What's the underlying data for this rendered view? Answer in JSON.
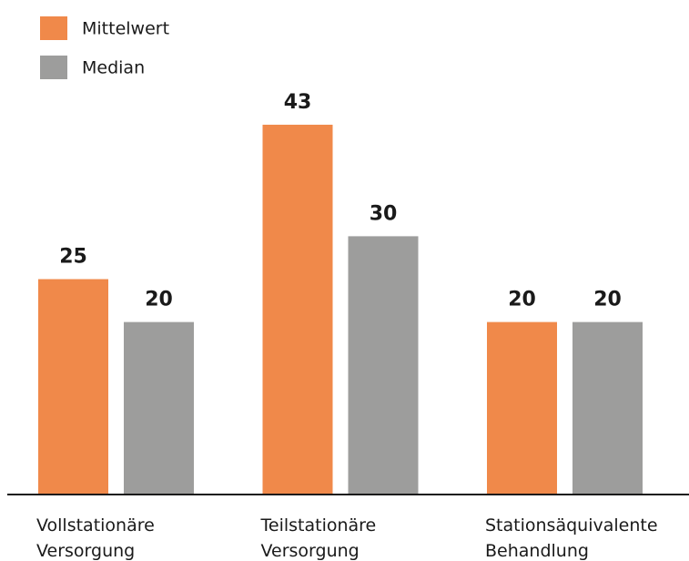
{
  "chart_data": {
    "type": "bar",
    "categories": [
      "Vollstationäre Versorgung",
      "Teilstationäre Versorgung",
      "Stationsäquivalente Behandlung"
    ],
    "series": [
      {
        "name": "Mittelwert",
        "color": "#f0894a",
        "values": [
          25,
          43,
          20
        ]
      },
      {
        "name": "Median",
        "color": "#9d9d9c",
        "values": [
          20,
          30,
          20
        ]
      }
    ],
    "legend": "top-left"
  }
}
